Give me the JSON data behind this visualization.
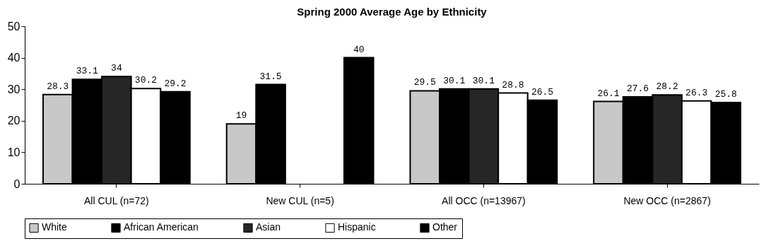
{
  "chart_data": {
    "type": "bar",
    "title": "Spring 2000 Average Age by Ethnicity",
    "categories": [
      "All CUL (n=72)",
      "New CUL (n=5)",
      "All OCC (n=13967)",
      "New OCC (n=2867)"
    ],
    "series": [
      {
        "name": "White",
        "color": "#c8c8c8",
        "values": [
          28.3,
          19,
          29.5,
          26.1
        ]
      },
      {
        "name": "African American",
        "color": "#000000",
        "values": [
          33.1,
          31.5,
          30.1,
          27.6
        ]
      },
      {
        "name": "Asian",
        "color": "#262626",
        "values": [
          34,
          null,
          30.1,
          28.2
        ]
      },
      {
        "name": "Hispanic",
        "color": "#ffffff",
        "values": [
          30.2,
          null,
          28.8,
          26.3
        ]
      },
      {
        "name": "Other",
        "color": "#000000",
        "values": [
          29.2,
          40,
          26.5,
          25.8
        ]
      }
    ],
    "ylim": [
      0,
      50
    ],
    "yticks": [
      0,
      10,
      20,
      30,
      40,
      50
    ],
    "grid": false,
    "legend": "bottom",
    "data_labels": true
  }
}
